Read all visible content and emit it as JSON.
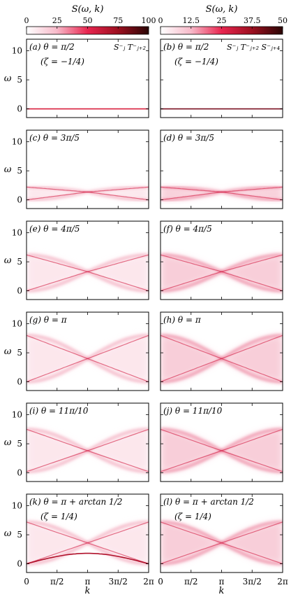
{
  "chart_data": {
    "type": "heatmap",
    "colorbars": [
      {
        "label": "S(ω, k)",
        "ticks": [
          "0",
          "25",
          "50",
          "75",
          "100"
        ],
        "range": [
          0,
          100
        ]
      },
      {
        "label": "S(ω, k)",
        "ticks": [
          "0",
          "12.5",
          "25",
          "37.5",
          "50"
        ],
        "range": [
          0,
          50
        ]
      }
    ],
    "xlabel": "k",
    "ylabel": "ω",
    "x_ticks": [
      "0",
      "π/2",
      "π",
      "3π/2",
      "2π"
    ],
    "y_ticks": [
      "0",
      "5",
      "10"
    ],
    "xlim": [
      0,
      6.2832
    ],
    "ylim": [
      -1.5,
      12
    ],
    "columns": [
      {
        "operator": "S⁻ⱼ T⁻ⱼ₊₂"
      },
      {
        "operator": "S⁻ⱼ T⁻ⱼ₊₂ S⁻ⱼ₊₄"
      }
    ],
    "rows": [
      {
        "theta": "π/2",
        "zeta": "(ζ = −1/4)",
        "bands": [
          0,
          0
        ],
        "cross": 0
      },
      {
        "theta": "3π/5",
        "bands": [
          0,
          2.2
        ],
        "cross": 1.35
      },
      {
        "theta": "4π/5",
        "bands": [
          0,
          6.2
        ],
        "cross": 3.3
      },
      {
        "theta": "π",
        "bands": [
          0,
          8.0
        ],
        "cross": 4.0
      },
      {
        "theta": "11π/10",
        "bands": [
          0.2,
          7.5
        ],
        "cross": 3.8
      },
      {
        "theta": "π + arctan 1/2",
        "zeta": "(ζ = 1/4)",
        "bands": [
          0,
          7.2
        ],
        "cross": 3.6
      }
    ],
    "panels": [
      {
        "label": "(a)",
        "row": 0,
        "col": 0
      },
      {
        "label": "(b)",
        "row": 0,
        "col": 1
      },
      {
        "label": "(c)",
        "row": 1,
        "col": 0
      },
      {
        "label": "(d)",
        "row": 1,
        "col": 1
      },
      {
        "label": "(e)",
        "row": 2,
        "col": 0
      },
      {
        "label": "(f)",
        "row": 2,
        "col": 1
      },
      {
        "label": "(g)",
        "row": 3,
        "col": 0
      },
      {
        "label": "(h)",
        "row": 3,
        "col": 1
      },
      {
        "label": "(i)",
        "row": 4,
        "col": 0
      },
      {
        "label": "(j)",
        "row": 4,
        "col": 1
      },
      {
        "label": "(k)",
        "row": 5,
        "col": 0
      },
      {
        "label": "(l)",
        "row": 5,
        "col": 1
      }
    ],
    "colormap": [
      "#ffffff",
      "#f5a3b8",
      "#e8254f",
      "#9c0f1f",
      "#2a0505"
    ]
  }
}
